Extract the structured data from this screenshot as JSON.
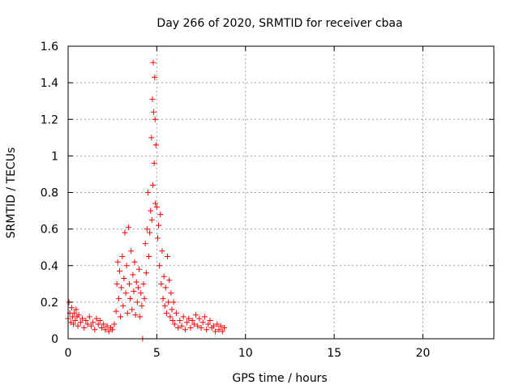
{
  "chart_data": {
    "type": "scatter",
    "title": "Day 266 of 2020, SRMTID for receiver cbaa",
    "xlabel": "GPS time / hours",
    "ylabel": "SRMTID / TECUs",
    "xlim": [
      0,
      24
    ],
    "ylim": [
      0,
      1.6
    ],
    "xticks": [
      0,
      5,
      10,
      15,
      20
    ],
    "xtick_labels": [
      "0",
      "5",
      "10",
      "15",
      "20"
    ],
    "yticks": [
      0,
      0.2,
      0.4,
      0.6,
      0.8,
      1.0,
      1.2,
      1.4,
      1.6
    ],
    "ytick_labels": [
      "0",
      "0.2",
      "0.4",
      "0.6",
      "0.8",
      "1",
      "1.2",
      "1.4",
      "1.6"
    ],
    "grid": true,
    "marker": "+",
    "color": "#ff0000",
    "series": [
      {
        "name": "cbaa",
        "x": [
          0.0,
          0.05,
          0.1,
          0.15,
          0.2,
          0.25,
          0.3,
          0.35,
          0.4,
          0.45,
          0.5,
          0.55,
          0.6,
          0.7,
          0.8,
          0.9,
          1.0,
          1.1,
          1.2,
          1.3,
          1.4,
          1.5,
          1.6,
          1.7,
          1.8,
          1.9,
          2.0,
          2.1,
          2.2,
          2.3,
          2.4,
          2.5,
          2.6,
          2.7,
          2.75,
          2.8,
          2.85,
          2.9,
          2.95,
          3.0,
          3.05,
          3.1,
          3.15,
          3.2,
          3.25,
          3.3,
          3.35,
          3.4,
          3.45,
          3.5,
          3.55,
          3.6,
          3.65,
          3.7,
          3.75,
          3.8,
          3.85,
          3.9,
          3.95,
          4.0,
          4.05,
          4.1,
          4.15,
          4.2,
          4.25,
          4.3,
          4.35,
          4.4,
          4.45,
          4.5,
          4.55,
          4.6,
          4.65,
          4.7,
          4.72,
          4.75,
          4.78,
          4.8,
          4.82,
          4.85,
          4.88,
          4.9,
          4.92,
          4.95,
          5.0,
          5.05,
          5.1,
          5.15,
          5.2,
          5.25,
          5.3,
          5.35,
          5.4,
          5.45,
          5.5,
          5.55,
          5.6,
          5.65,
          5.7,
          5.75,
          5.8,
          5.85,
          5.9,
          5.95,
          6.0,
          6.1,
          6.2,
          6.3,
          6.4,
          6.5,
          6.6,
          6.7,
          6.8,
          6.9,
          7.0,
          7.1,
          7.2,
          7.3,
          7.4,
          7.5,
          7.6,
          7.7,
          7.8,
          7.9,
          8.0,
          8.1,
          8.2,
          8.3,
          8.4,
          8.5,
          8.6,
          8.7,
          8.8
        ],
        "y": [
          0.11,
          0.2,
          0.14,
          0.09,
          0.17,
          0.12,
          0.08,
          0.14,
          0.1,
          0.16,
          0.12,
          0.07,
          0.13,
          0.09,
          0.11,
          0.06,
          0.1,
          0.08,
          0.12,
          0.07,
          0.09,
          0.05,
          0.11,
          0.08,
          0.1,
          0.06,
          0.08,
          0.05,
          0.07,
          0.04,
          0.06,
          0.05,
          0.08,
          0.15,
          0.3,
          0.42,
          0.22,
          0.37,
          0.12,
          0.28,
          0.45,
          0.18,
          0.33,
          0.58,
          0.25,
          0.4,
          0.14,
          0.61,
          0.3,
          0.22,
          0.48,
          0.16,
          0.35,
          0.26,
          0.42,
          0.13,
          0.31,
          0.2,
          0.28,
          0.38,
          0.12,
          0.25,
          0.18,
          0.0,
          0.3,
          0.22,
          0.52,
          0.36,
          0.6,
          0.8,
          0.45,
          0.58,
          0.7,
          1.1,
          0.65,
          1.31,
          0.84,
          1.51,
          1.24,
          0.96,
          1.43,
          1.2,
          0.74,
          1.06,
          0.72,
          0.55,
          0.62,
          0.4,
          0.68,
          0.3,
          0.48,
          0.22,
          0.34,
          0.18,
          0.28,
          0.14,
          0.45,
          0.2,
          0.32,
          0.12,
          0.25,
          0.16,
          0.1,
          0.2,
          0.08,
          0.14,
          0.06,
          0.1,
          0.07,
          0.12,
          0.05,
          0.09,
          0.11,
          0.06,
          0.1,
          0.08,
          0.13,
          0.07,
          0.11,
          0.06,
          0.09,
          0.12,
          0.05,
          0.08,
          0.1,
          0.06,
          0.07,
          0.04,
          0.08,
          0.05,
          0.07,
          0.04,
          0.06
        ]
      }
    ]
  }
}
